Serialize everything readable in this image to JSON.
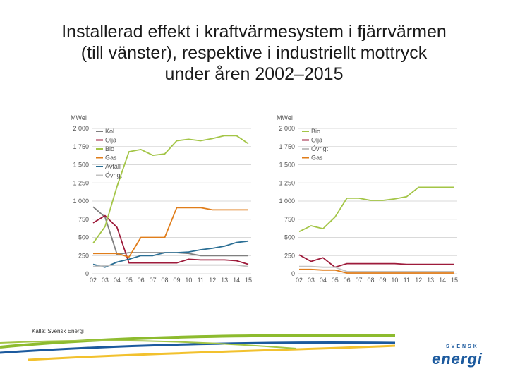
{
  "title_lines": [
    "Installerad effekt i kraftvärmesystem i fjärrvärmen",
    "(till vänster), respektive i industriellt mottryck",
    "under åren 2002–2015"
  ],
  "source": "Källa: Svensk Energi",
  "logo": {
    "small": "SVENSK",
    "main": "energi"
  },
  "colors": {
    "kol": "#7f7f7f",
    "olja": "#9e1b3b",
    "bio": "#a3c546",
    "gas": "#e07d1a",
    "avfall": "#2a6e94",
    "ovrigt": "#c2c2c2",
    "grid": "#d9d9d9",
    "axis_text": "#555555",
    "logo": "#1c5a9e",
    "swoosh_green": "#8dbb2e",
    "swoosh_blue": "#1c5a9e",
    "swoosh_yellow": "#f2c12e"
  },
  "chart_data": [
    {
      "type": "line",
      "ylabel": "MWel",
      "ylim": [
        0,
        2000
      ],
      "yticks": [
        0,
        250,
        500,
        750,
        1000,
        1250,
        1500,
        1750,
        2000
      ],
      "ytick_labels": [
        "0",
        "250",
        "500",
        "750",
        "1 000",
        "1 250",
        "1 500",
        "1 750",
        "2 000"
      ],
      "categories": [
        "02",
        "03",
        "04",
        "05",
        "06",
        "07",
        "08",
        "09",
        "10",
        "11",
        "12",
        "13",
        "14",
        "15"
      ],
      "grid": true,
      "legend_position": "top-left",
      "series": [
        {
          "name": "Kol",
          "color_key": "kol",
          "values": [
            920,
            780,
            270,
            290,
            290,
            290,
            290,
            290,
            280,
            250,
            250,
            250,
            250,
            250
          ]
        },
        {
          "name": "Olja",
          "color_key": "olja",
          "values": [
            700,
            800,
            640,
            150,
            150,
            150,
            150,
            150,
            200,
            190,
            190,
            190,
            180,
            130
          ]
        },
        {
          "name": "Bio",
          "color_key": "bio",
          "values": [
            420,
            650,
            1200,
            1680,
            1710,
            1630,
            1650,
            1830,
            1850,
            1830,
            1860,
            1900,
            1900,
            1790
          ]
        },
        {
          "name": "Gas",
          "color_key": "gas",
          "values": [
            280,
            280,
            280,
            230,
            500,
            500,
            500,
            910,
            910,
            910,
            880,
            880,
            880,
            880
          ]
        },
        {
          "name": "Avfall",
          "color_key": "avfall",
          "values": [
            130,
            90,
            160,
            200,
            250,
            250,
            290,
            290,
            300,
            330,
            350,
            380,
            430,
            450
          ]
        },
        {
          "name": "Övrigt",
          "color_key": "ovrigt",
          "values": [
            100,
            110,
            120,
            120,
            120,
            120,
            120,
            120,
            120,
            120,
            120,
            120,
            120,
            100
          ]
        }
      ]
    },
    {
      "type": "line",
      "ylabel": "MWel",
      "ylim": [
        0,
        2000
      ],
      "yticks": [
        0,
        250,
        500,
        750,
        1000,
        1250,
        1500,
        1750,
        2000
      ],
      "ytick_labels": [
        "0",
        "250",
        "500",
        "750",
        "1 000",
        "1 250",
        "1 500",
        "1 750",
        "2 000"
      ],
      "categories": [
        "02",
        "03",
        "04",
        "05",
        "06",
        "07",
        "08",
        "09",
        "10",
        "11",
        "12",
        "13",
        "14",
        "15"
      ],
      "grid": true,
      "legend_position": "top-left",
      "series": [
        {
          "name": "Bio",
          "color_key": "bio",
          "values": [
            580,
            660,
            620,
            780,
            1040,
            1040,
            1010,
            1010,
            1030,
            1060,
            1190,
            1190,
            1190,
            1190
          ]
        },
        {
          "name": "Olja",
          "color_key": "olja",
          "values": [
            260,
            170,
            220,
            90,
            140,
            140,
            140,
            140,
            140,
            130,
            130,
            130,
            130,
            130
          ]
        },
        {
          "name": "Övrigt",
          "color_key": "ovrigt",
          "values": [
            100,
            100,
            90,
            90,
            30,
            30,
            30,
            30,
            30,
            30,
            30,
            30,
            30,
            30
          ]
        },
        {
          "name": "Gas",
          "color_key": "gas",
          "values": [
            60,
            60,
            50,
            50,
            10,
            10,
            10,
            10,
            10,
            10,
            10,
            10,
            10,
            10
          ]
        }
      ]
    }
  ]
}
